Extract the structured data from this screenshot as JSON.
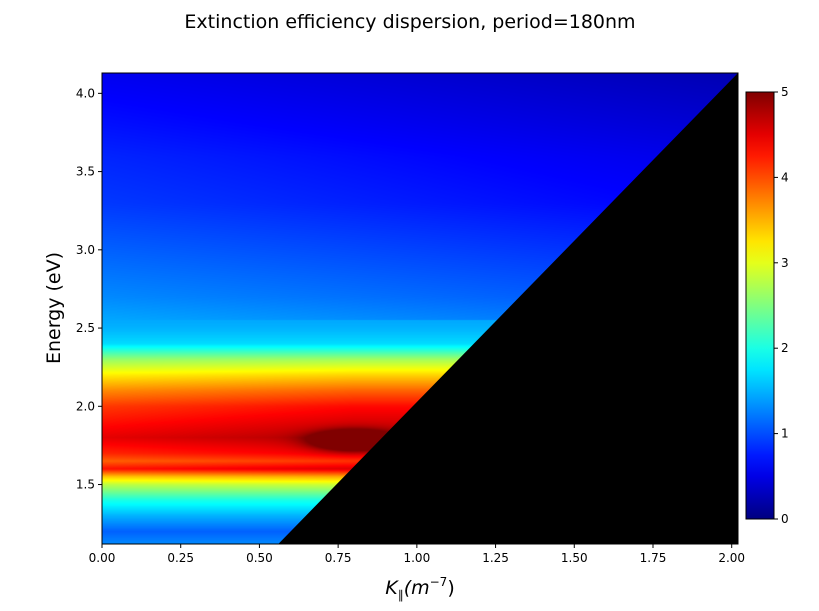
{
  "chart_data": {
    "type": "heatmap",
    "title": "Extinction efficiency dispersion, period=180nm",
    "xlabel_main": "K",
    "xlabel_sub": "∥",
    "xlabel_unit_open": "(m",
    "xlabel_unit_exp": "−7",
    "xlabel_unit_close": ")",
    "ylabel": "Energy (eV)",
    "xlim": [
      0.0,
      2.02
    ],
    "ylim": [
      1.12,
      4.13
    ],
    "x_ticks": [
      {
        "value": 0.0,
        "label": "0.00"
      },
      {
        "value": 0.25,
        "label": "0.25"
      },
      {
        "value": 0.5,
        "label": "0.50"
      },
      {
        "value": 0.75,
        "label": "0.75"
      },
      {
        "value": 1.0,
        "label": "1.00"
      },
      {
        "value": 1.25,
        "label": "1.25"
      },
      {
        "value": 1.5,
        "label": "1.50"
      },
      {
        "value": 1.75,
        "label": "1.75"
      },
      {
        "value": 2.0,
        "label": "2.00"
      }
    ],
    "y_ticks": [
      {
        "value": 1.5,
        "label": "1.5"
      },
      {
        "value": 2.0,
        "label": "2.0"
      },
      {
        "value": 2.5,
        "label": "2.5"
      },
      {
        "value": 3.0,
        "label": "3.0"
      },
      {
        "value": 3.5,
        "label": "3.5"
      },
      {
        "value": 4.0,
        "label": "4.0"
      }
    ],
    "colorbar": {
      "colormap": "jet",
      "range": [
        0,
        5
      ],
      "ticks": [
        {
          "value": 0,
          "label": "0"
        },
        {
          "value": 1,
          "label": "1"
        },
        {
          "value": 2,
          "label": "2"
        },
        {
          "value": 3,
          "label": "3"
        },
        {
          "value": 4,
          "label": "4"
        },
        {
          "value": 5,
          "label": "5"
        }
      ]
    },
    "masked_region": {
      "color": "#000000",
      "boundary": [
        [
          0.56,
          1.12
        ],
        [
          2.02,
          4.13
        ]
      ]
    },
    "energy_profile_at_k0": [
      {
        "energy": 1.12,
        "value": 1.3
      },
      {
        "energy": 1.2,
        "value": 1.1
      },
      {
        "energy": 1.3,
        "value": 1.5
      },
      {
        "energy": 1.4,
        "value": 2.0
      },
      {
        "energy": 1.5,
        "value": 2.8
      },
      {
        "energy": 1.55,
        "value": 3.4
      },
      {
        "energy": 1.6,
        "value": 4.3
      },
      {
        "energy": 1.65,
        "value": 3.9
      },
      {
        "energy": 1.7,
        "value": 4.2
      },
      {
        "energy": 1.8,
        "value": 4.5
      },
      {
        "energy": 1.9,
        "value": 4.3
      },
      {
        "energy": 2.0,
        "value": 4.1
      },
      {
        "energy": 2.1,
        "value": 3.7
      },
      {
        "energy": 2.2,
        "value": 3.2
      },
      {
        "energy": 2.3,
        "value": 2.6
      },
      {
        "energy": 2.4,
        "value": 1.7
      },
      {
        "energy": 2.5,
        "value": 1.5
      },
      {
        "energy": 2.7,
        "value": 1.3
      },
      {
        "energy": 3.0,
        "value": 1.1
      },
      {
        "energy": 3.3,
        "value": 0.9
      },
      {
        "energy": 3.6,
        "value": 0.8
      },
      {
        "energy": 3.8,
        "value": 0.7
      },
      {
        "energy": 4.13,
        "value": 0.55
      }
    ],
    "hotspot": {
      "k": 0.8,
      "energy": 1.78,
      "value": 5.0
    }
  }
}
